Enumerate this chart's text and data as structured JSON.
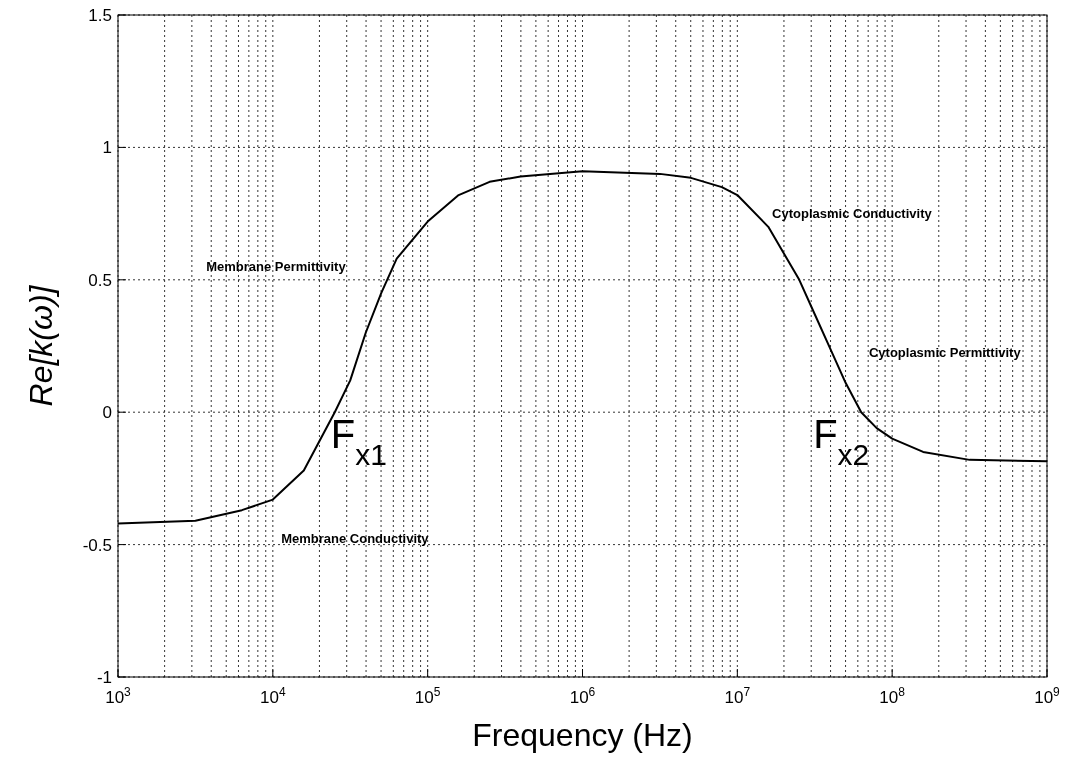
{
  "chart_data": {
    "type": "line",
    "xlabel": "Frequency (Hz)",
    "ylabel": "Re[k(ω)]",
    "log": "x",
    "grid": true,
    "marker": "none",
    "line_style": "solid",
    "xlim": [
      1000,
      1000000000
    ],
    "ylim": [
      -1,
      1.5
    ],
    "xticks": [
      {
        "value": 1000,
        "label": "10$^{3}$"
      },
      {
        "value": 10000,
        "label": "10$^{4}$"
      },
      {
        "value": 100000,
        "label": "10$^{5}$"
      },
      {
        "value": 1000000,
        "label": "10$^{6}$"
      },
      {
        "value": 10000000,
        "label": "10$^{7}$"
      },
      {
        "value": 100000000,
        "label": "10$^{8}$"
      },
      {
        "value": 1000000000,
        "label": "10$^{9}$"
      }
    ],
    "yticks": [
      -1,
      {
        "value": -0.5,
        "label": "-0.5"
      },
      0,
      {
        "value": 0.5,
        "label": "0.5"
      },
      1,
      {
        "value": 1.5,
        "label": "1.5"
      }
    ],
    "series": [
      {
        "color": "#000000",
        "x": [
          1000,
          3162,
          6310,
          10000,
          15850,
          25120,
          31620,
          39810,
          50120,
          63100,
          100000,
          158500,
          251200,
          398100,
          1000000,
          3162000,
          5012000,
          7943000,
          10000000,
          15850000,
          25120000,
          31620000,
          39810000,
          50120000,
          63100000,
          79430000,
          100000000,
          158500000,
          316200000,
          1000000000
        ],
        "values": [
          -0.42,
          -0.41,
          -0.37,
          -0.33,
          -0.22,
          0,
          0.12,
          0.3,
          0.45,
          0.58,
          0.72,
          0.82,
          0.87,
          0.89,
          0.91,
          0.9,
          0.885,
          0.85,
          0.82,
          0.7,
          0.5,
          0.37,
          0.24,
          0.11,
          0,
          -0.06,
          -0.1,
          -0.15,
          -0.18,
          -0.185
        ]
      }
    ],
    "annotations": [
      "Membrane Permittivity",
      "Membrane Conductivity",
      "Cytoplasmic Conductivity",
      "Cytoplasmic Permittivity",
      {
        "text": "F$_{x1}$",
        "x": 25120,
        "y": 0
      },
      {
        "text": "F$_{x2}$",
        "x": 63100000,
        "y": 0
      }
    ]
  }
}
